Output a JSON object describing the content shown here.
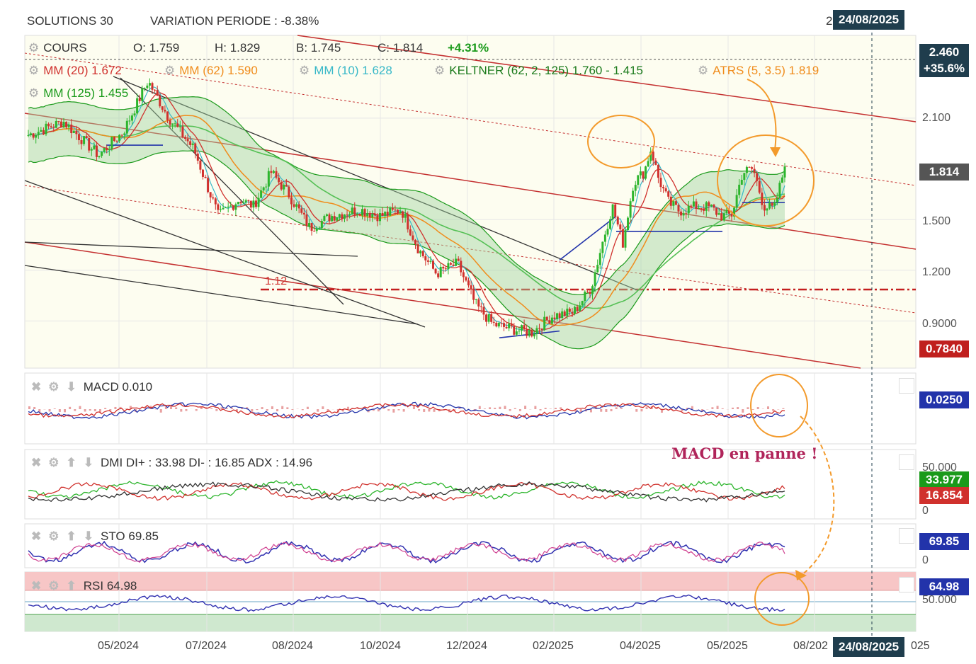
{
  "header": {
    "symbol": "SOLUTIONS 30",
    "variation": "VARIATION PERIODE : -8.38%",
    "date_box": "24/08/2025",
    "date_box_bottom": "24/08/2025",
    "date_partial_left": "2",
    "date_partial_right": "025"
  },
  "legend": {
    "cours": "COURS",
    "o": "O: 1.759",
    "h": "H: 1.829",
    "b": "B: 1.745",
    "c": "C: 1.814",
    "change": "+4.31%",
    "mm20": "MM (20)",
    "mm20_val": "1.672",
    "mm62": "MM (62)",
    "mm62_val": "1.590",
    "mm10": "MM (10)",
    "mm10_val": "1.628",
    "keltner": "KELTNER (62, 2, 125)",
    "keltner_val": "1.760 - 1.415",
    "atrs": "ATRS (5, 3.5)",
    "atrs_val": "1.819",
    "mm125": "MM (125)",
    "mm125_val": "1.455",
    "support_label": "1.12"
  },
  "price_axis": {
    "ticks": [
      "2.100",
      "1.500",
      "1.200",
      "0.9000"
    ],
    "top_tag": "2.460",
    "top_tag_pct": "+35.6%",
    "last_tag": "1.814",
    "low_tag": "0.7840"
  },
  "panels": {
    "macd": {
      "name": "MACD",
      "value": "0.010",
      "tag": "0.0250"
    },
    "dmi": {
      "name": "DMI",
      "value": "DI+ : 33.98 DI- : 16.85 ADX : 14.96",
      "axis_top": "50.000",
      "axis_zero": "0",
      "tag_plus": "33.977",
      "tag_minus": "16.854"
    },
    "sto": {
      "name": "STO",
      "value": "69.85",
      "tag": "69.85",
      "axis_zero": "0"
    },
    "rsi": {
      "name": "RSI",
      "value": "64.98",
      "tag": "64.98",
      "axis_mid": "50.000"
    }
  },
  "annotation": {
    "text": "MACD en panne !"
  },
  "x_axis": [
    "05/2024",
    "07/2024",
    "08/2024",
    "10/2024",
    "12/2024",
    "02/2025",
    "04/2025",
    "05/2025",
    "08/202"
  ],
  "colors": {
    "up": "#2db52d",
    "down": "#d0312d",
    "mm20": "#d0312d",
    "mm62": "#f08c1c",
    "mm10": "#38b8c8",
    "keltner": "#1a9a1a",
    "atrs": "#2233aa",
    "annot": "#f39a2b",
    "header_box": "#1f3d4d",
    "rsi": "#3030b0"
  },
  "chart_data": {
    "type": "candlestick",
    "title": "SOLUTIONS 30",
    "x_ticks": [
      "05/2024",
      "07/2024",
      "08/2024",
      "10/2024",
      "12/2024",
      "02/2025",
      "04/2025",
      "05/2025"
    ],
    "y_ticks": [
      2.1,
      1.5,
      1.2,
      0.9
    ],
    "ylim": [
      0.74,
      2.58
    ],
    "anchors": [
      [
        0,
        2.0
      ],
      [
        0.05,
        2.08
      ],
      [
        0.1,
        1.88
      ],
      [
        0.135,
        2.02
      ],
      [
        0.17,
        2.32
      ],
      [
        0.2,
        2.1
      ],
      [
        0.235,
        1.92
      ],
      [
        0.27,
        1.52
      ],
      [
        0.3,
        1.62
      ],
      [
        0.32,
        1.58
      ],
      [
        0.345,
        1.78
      ],
      [
        0.37,
        1.65
      ],
      [
        0.4,
        1.45
      ],
      [
        0.43,
        1.52
      ],
      [
        0.47,
        1.56
      ],
      [
        0.5,
        1.52
      ],
      [
        0.53,
        1.56
      ],
      [
        0.555,
        1.32
      ],
      [
        0.58,
        1.18
      ],
      [
        0.61,
        1.24
      ],
      [
        0.635,
        1.0
      ],
      [
        0.66,
        0.88
      ],
      [
        0.69,
        0.85
      ],
      [
        0.715,
        0.83
      ],
      [
        0.745,
        0.93
      ],
      [
        0.775,
        0.95
      ],
      [
        0.8,
        1.1
      ],
      [
        0.815,
        1.35
      ],
      [
        0.83,
        1.58
      ],
      [
        0.845,
        1.36
      ],
      [
        0.86,
        1.72
      ],
      [
        0.875,
        1.78
      ],
      [
        0.885,
        1.92
      ],
      [
        0.895,
        1.75
      ],
      [
        0.91,
        1.6
      ],
      [
        0.925,
        1.55
      ],
      [
        0.95,
        1.58
      ],
      [
        0.97,
        1.57
      ],
      [
        0.985,
        1.52
      ],
      [
        1.0,
        1.53
      ],
      [
        1.015,
        1.78
      ],
      [
        1.03,
        1.8
      ],
      [
        1.045,
        1.58
      ],
      [
        1.06,
        1.56
      ],
      [
        1.075,
        1.814
      ]
    ],
    "last_close": 1.814,
    "support": 1.12,
    "macd_last": 0.01,
    "dmi": {
      "di_plus": 33.98,
      "di_minus": 16.85,
      "adx": 14.96
    },
    "sto_last": 69.85,
    "rsi_last": 64.98
  }
}
